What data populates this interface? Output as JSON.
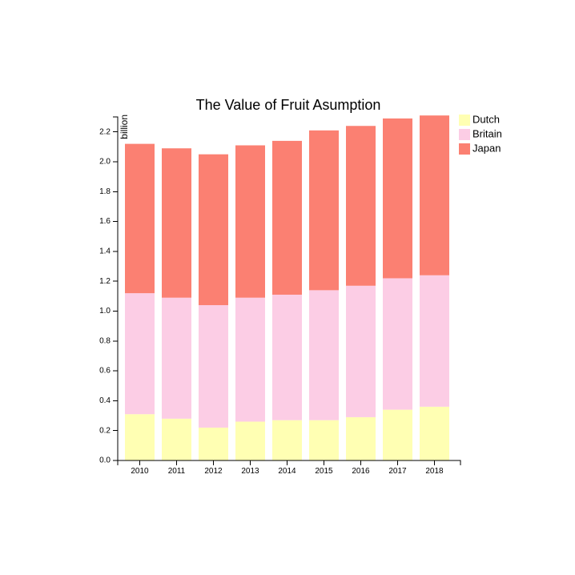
{
  "chart_data": {
    "type": "bar",
    "stacked": true,
    "title": "The Value of Fruit Asumption",
    "xlabel": "",
    "ylabel": "billion",
    "categories": [
      "2010",
      "2011",
      "2012",
      "2013",
      "2014",
      "2015",
      "2016",
      "2017",
      "2018"
    ],
    "ylim": [
      0,
      2.3
    ],
    "yticks": [
      "0.0",
      "0.2",
      "0.4",
      "0.6",
      "0.8",
      "1.0",
      "1.2",
      "1.4",
      "1.6",
      "1.8",
      "2.0",
      "2.2"
    ],
    "series": [
      {
        "name": "Dutch",
        "color": "#ffffb3",
        "values": [
          0.31,
          0.28,
          0.22,
          0.26,
          0.27,
          0.27,
          0.29,
          0.34,
          0.36
        ]
      },
      {
        "name": "Britain",
        "color": "#fccde5",
        "values": [
          0.81,
          0.81,
          0.82,
          0.83,
          0.84,
          0.87,
          0.88,
          0.88,
          0.88
        ]
      },
      {
        "name": "Japan",
        "color": "#fb8072",
        "values": [
          1.0,
          1.0,
          1.01,
          1.02,
          1.03,
          1.07,
          1.07,
          1.07,
          1.07
        ]
      }
    ],
    "legend": {
      "position": "top-right"
    }
  }
}
